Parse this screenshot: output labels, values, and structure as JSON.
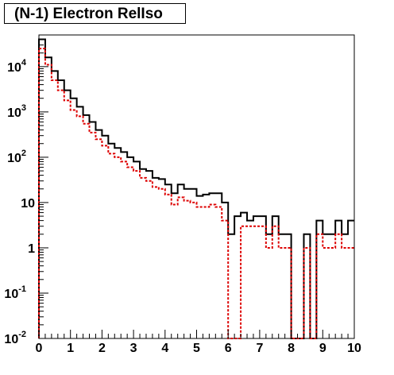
{
  "chart_data": {
    "type": "step",
    "title": "(N-1) Electron RelIso",
    "xlabel": "",
    "ylabel": "",
    "xlim": [
      0,
      10
    ],
    "ylim": [
      0.01,
      50000
    ],
    "yscale": "log",
    "bin_width": 0.2,
    "x_ticks": [
      "0",
      "1",
      "2",
      "3",
      "4",
      "5",
      "6",
      "7",
      "8",
      "9",
      "10"
    ],
    "y_ticks": [
      {
        "base": "10",
        "exp": "4",
        "value": 10000
      },
      {
        "base": "10",
        "exp": "3",
        "value": 1000
      },
      {
        "base": "10",
        "exp": "2",
        "value": 100
      },
      {
        "base": "10",
        "exp": "",
        "value": 10
      },
      {
        "base": "1",
        "exp": "",
        "value": 1
      },
      {
        "base": "10",
        "exp": "-1",
        "value": 0.1
      },
      {
        "base": "10",
        "exp": "-2",
        "value": 0.01
      }
    ],
    "series": [
      {
        "color": "#000000",
        "style": "solid",
        "values": [
          40000,
          16000,
          8000,
          5000,
          3000,
          2000,
          1300,
          850,
          600,
          400,
          300,
          200,
          160,
          130,
          100,
          80,
          55,
          50,
          35,
          33,
          25,
          16,
          25,
          20,
          20,
          14,
          15,
          16,
          16,
          10,
          2,
          5,
          6,
          4,
          5,
          5,
          2,
          5,
          2,
          2,
          0,
          0,
          2,
          0,
          4,
          2,
          2,
          4,
          2,
          4
        ]
      },
      {
        "color": "#dd0000",
        "style": "dashed",
        "values": [
          25000,
          11000,
          5000,
          3000,
          1800,
          1100,
          800,
          550,
          350,
          250,
          180,
          120,
          100,
          80,
          60,
          50,
          35,
          30,
          22,
          20,
          15,
          9,
          13,
          11,
          10,
          8,
          8,
          9,
          8,
          4,
          0,
          0,
          3,
          3,
          3,
          3,
          1,
          3,
          1,
          1,
          0,
          0,
          1,
          0,
          2,
          1,
          1,
          2,
          1,
          1
        ]
      }
    ],
    "grid": false,
    "legend": "none"
  }
}
